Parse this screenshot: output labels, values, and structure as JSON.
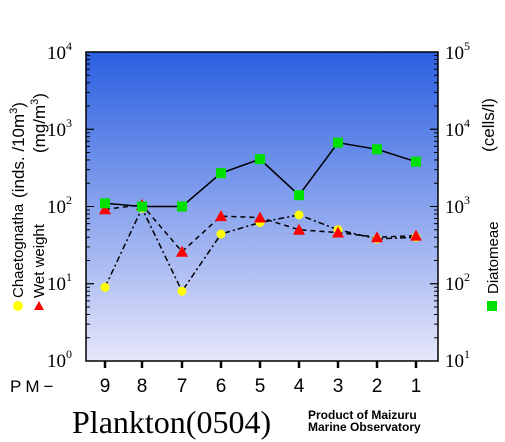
{
  "chart_data": {
    "type": "line",
    "title": "Plankton(0504)",
    "credit": [
      "Product of Maizuru",
      "Marine Observatory"
    ],
    "x_prefix": "PM−",
    "categories": [
      "9",
      "8",
      "7",
      "6",
      "5",
      "4",
      "3",
      "2",
      "1"
    ],
    "y_left": {
      "scale": "log",
      "range": [
        1,
        10000
      ],
      "tick_labels": [
        "10",
        "10",
        "10",
        "10",
        "10"
      ],
      "tick_exponents": [
        "0",
        "1",
        "2",
        "3",
        "4"
      ],
      "label_top": "(inds. /10m",
      "label_top_sup": "3",
      "label_top_end": ")",
      "label_bottom": "(mg/m",
      "label_bottom_sup": "3",
      "label_bottom_end": ")"
    },
    "y_right": {
      "scale": "log",
      "range": [
        10,
        100000
      ],
      "tick_labels": [
        "10",
        "10",
        "10",
        "10",
        "10"
      ],
      "tick_exponents": [
        "1",
        "2",
        "3",
        "4",
        "5"
      ],
      "label": "(cells/l)"
    },
    "series": [
      {
        "name": "Chaetognatha",
        "axis": "left",
        "marker": "circle",
        "color": "#ffff00",
        "line": "dashdot",
        "values": [
          9,
          95,
          8,
          44,
          62,
          78,
          50,
          38,
          40
        ]
      },
      {
        "name": "Wet weight",
        "axis": "left",
        "marker": "triangle",
        "color": "#ff0000",
        "line": "dashed",
        "values": [
          92,
          105,
          26,
          75,
          72,
          50,
          46,
          40,
          42
        ]
      },
      {
        "name": "Diatomeae",
        "axis": "right",
        "marker": "square",
        "color": "#00e000",
        "line": "solid",
        "values": [
          1100,
          1000,
          1000,
          2700,
          4100,
          1400,
          6700,
          5500,
          3800
        ]
      }
    ],
    "background_gradient": [
      "#2a5fe0",
      "#e6e6fa"
    ]
  }
}
